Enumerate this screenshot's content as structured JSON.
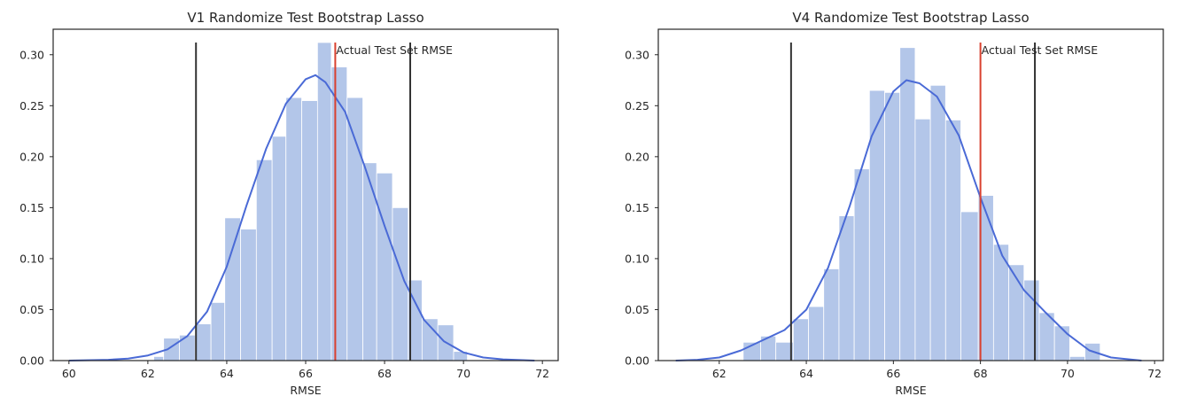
{
  "chart_data": [
    {
      "type": "histogram",
      "title": "V1 Randomize Test Bootstrap Lasso",
      "xlabel": "RMSE",
      "ylabel": "",
      "xlim": [
        59.6,
        72.4
      ],
      "ylim": [
        0,
        0.325
      ],
      "xticks": [
        60,
        62,
        64,
        66,
        68,
        70,
        72
      ],
      "yticks": [
        0.0,
        0.05,
        0.1,
        0.15,
        0.2,
        0.25,
        0.3
      ],
      "grid": false,
      "hist_color": "#b3c6e9",
      "kde_color": "#4a6ad6",
      "bins": [
        {
          "x0": 62.15,
          "x1": 62.4,
          "height": 0.004
        },
        {
          "x0": 62.4,
          "x1": 62.8,
          "height": 0.022
        },
        {
          "x0": 62.8,
          "x1": 63.2,
          "height": 0.025
        },
        {
          "x0": 63.2,
          "x1": 63.6,
          "height": 0.036
        },
        {
          "x0": 63.6,
          "x1": 63.95,
          "height": 0.057
        },
        {
          "x0": 63.95,
          "x1": 64.35,
          "height": 0.14
        },
        {
          "x0": 64.35,
          "x1": 64.75,
          "height": 0.129
        },
        {
          "x0": 64.75,
          "x1": 65.15,
          "height": 0.197
        },
        {
          "x0": 65.15,
          "x1": 65.5,
          "height": 0.22
        },
        {
          "x0": 65.5,
          "x1": 65.9,
          "height": 0.258
        },
        {
          "x0": 65.9,
          "x1": 66.3,
          "height": 0.255
        },
        {
          "x0": 66.3,
          "x1": 66.65,
          "height": 0.312
        },
        {
          "x0": 66.65,
          "x1": 67.05,
          "height": 0.288
        },
        {
          "x0": 67.05,
          "x1": 67.45,
          "height": 0.258
        },
        {
          "x0": 67.45,
          "x1": 67.8,
          "height": 0.194
        },
        {
          "x0": 67.8,
          "x1": 68.2,
          "height": 0.184
        },
        {
          "x0": 68.2,
          "x1": 68.6,
          "height": 0.15
        },
        {
          "x0": 68.6,
          "x1": 68.95,
          "height": 0.079
        },
        {
          "x0": 68.95,
          "x1": 69.35,
          "height": 0.041
        },
        {
          "x0": 69.35,
          "x1": 69.75,
          "height": 0.035
        },
        {
          "x0": 69.75,
          "x1": 70.1,
          "height": 0.009
        }
      ],
      "kde": [
        [
          60.0,
          0.0
        ],
        [
          61.0,
          0.0008
        ],
        [
          61.5,
          0.002
        ],
        [
          62.0,
          0.005
        ],
        [
          62.5,
          0.011
        ],
        [
          63.0,
          0.024
        ],
        [
          63.5,
          0.048
        ],
        [
          64.0,
          0.092
        ],
        [
          64.5,
          0.152
        ],
        [
          65.0,
          0.208
        ],
        [
          65.5,
          0.252
        ],
        [
          66.0,
          0.276
        ],
        [
          66.25,
          0.28
        ],
        [
          66.5,
          0.273
        ],
        [
          67.0,
          0.244
        ],
        [
          67.5,
          0.19
        ],
        [
          68.0,
          0.132
        ],
        [
          68.5,
          0.078
        ],
        [
          69.0,
          0.04
        ],
        [
          69.5,
          0.019
        ],
        [
          70.0,
          0.008
        ],
        [
          70.5,
          0.003
        ],
        [
          71.0,
          0.0012
        ],
        [
          71.8,
          0.0
        ]
      ],
      "vlines": [
        {
          "x": 63.22,
          "ymax": 0.312,
          "color": "#333333"
        },
        {
          "x": 66.75,
          "ymax": 0.312,
          "color": "#d9412f"
        },
        {
          "x": 68.65,
          "ymax": 0.312,
          "color": "#333333"
        }
      ],
      "annotations": [
        {
          "text": "Actual Test Set RMSE",
          "x": 66.75,
          "y": 0.312
        }
      ]
    },
    {
      "type": "histogram",
      "title": "V4 Randomize Test Bootstrap Lasso",
      "xlabel": "RMSE",
      "ylabel": "",
      "xlim": [
        60.6,
        72.2
      ],
      "ylim": [
        0,
        0.325
      ],
      "xticks": [
        62,
        64,
        66,
        68,
        70,
        72
      ],
      "yticks": [
        0.0,
        0.05,
        0.1,
        0.15,
        0.2,
        0.25,
        0.3
      ],
      "grid": false,
      "hist_color": "#b3c6e9",
      "kde_color": "#4a6ad6",
      "bins": [
        {
          "x0": 62.55,
          "x1": 62.95,
          "height": 0.018
        },
        {
          "x0": 62.95,
          "x1": 63.3,
          "height": 0.024
        },
        {
          "x0": 63.3,
          "x1": 63.7,
          "height": 0.018
        },
        {
          "x0": 63.7,
          "x1": 64.05,
          "height": 0.041
        },
        {
          "x0": 64.05,
          "x1": 64.4,
          "height": 0.053
        },
        {
          "x0": 64.4,
          "x1": 64.75,
          "height": 0.09
        },
        {
          "x0": 64.75,
          "x1": 65.1,
          "height": 0.142
        },
        {
          "x0": 65.1,
          "x1": 65.45,
          "height": 0.188
        },
        {
          "x0": 65.45,
          "x1": 65.8,
          "height": 0.265
        },
        {
          "x0": 65.8,
          "x1": 66.15,
          "height": 0.263
        },
        {
          "x0": 66.15,
          "x1": 66.5,
          "height": 0.307
        },
        {
          "x0": 66.5,
          "x1": 66.85,
          "height": 0.237
        },
        {
          "x0": 66.85,
          "x1": 67.2,
          "height": 0.27
        },
        {
          "x0": 67.2,
          "x1": 67.55,
          "height": 0.236
        },
        {
          "x0": 67.55,
          "x1": 67.95,
          "height": 0.146
        },
        {
          "x0": 67.95,
          "x1": 68.3,
          "height": 0.162
        },
        {
          "x0": 68.3,
          "x1": 68.65,
          "height": 0.114
        },
        {
          "x0": 68.65,
          "x1": 69.0,
          "height": 0.094
        },
        {
          "x0": 69.0,
          "x1": 69.35,
          "height": 0.079
        },
        {
          "x0": 69.35,
          "x1": 69.7,
          "height": 0.047
        },
        {
          "x0": 69.7,
          "x1": 70.05,
          "height": 0.034
        },
        {
          "x0": 70.05,
          "x1": 70.4,
          "height": 0.004
        },
        {
          "x0": 70.4,
          "x1": 70.75,
          "height": 0.017
        }
      ],
      "kde": [
        [
          61.0,
          0.0
        ],
        [
          61.5,
          0.0008
        ],
        [
          62.0,
          0.003
        ],
        [
          62.5,
          0.01
        ],
        [
          63.0,
          0.02
        ],
        [
          63.5,
          0.03
        ],
        [
          64.0,
          0.05
        ],
        [
          64.5,
          0.091
        ],
        [
          65.0,
          0.152
        ],
        [
          65.5,
          0.22
        ],
        [
          66.0,
          0.264
        ],
        [
          66.3,
          0.275
        ],
        [
          66.6,
          0.272
        ],
        [
          67.0,
          0.259
        ],
        [
          67.5,
          0.221
        ],
        [
          68.0,
          0.16
        ],
        [
          68.5,
          0.103
        ],
        [
          69.0,
          0.069
        ],
        [
          69.5,
          0.047
        ],
        [
          70.0,
          0.026
        ],
        [
          70.5,
          0.01
        ],
        [
          71.0,
          0.003
        ],
        [
          71.7,
          0.0
        ]
      ],
      "vlines": [
        {
          "x": 63.65,
          "ymax": 0.312,
          "color": "#333333"
        },
        {
          "x": 68.0,
          "ymax": 0.312,
          "color": "#d9412f"
        },
        {
          "x": 69.25,
          "ymax": 0.312,
          "color": "#333333"
        }
      ],
      "annotations": [
        {
          "text": "Actual Test Set RMSE",
          "x": 68.0,
          "y": 0.312
        }
      ]
    }
  ]
}
